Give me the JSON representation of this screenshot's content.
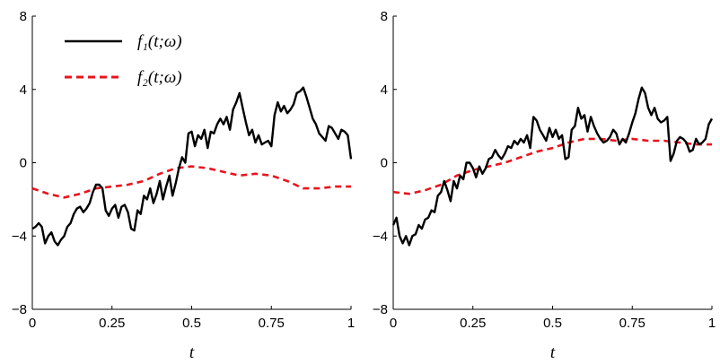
{
  "chart_data": [
    {
      "type": "line",
      "xlabel": "t",
      "xlim": [
        0,
        1
      ],
      "ylim": [
        -8,
        8
      ],
      "xticks": [
        {
          "v": 0,
          "label": "0"
        },
        {
          "v": 0.25,
          "label": "0.25"
        },
        {
          "v": 0.5,
          "label": "0.5"
        },
        {
          "v": 0.75,
          "label": "0.75"
        },
        {
          "v": 1,
          "label": "1"
        }
      ],
      "yticks": [
        {
          "v": -8,
          "label": "−8"
        },
        {
          "v": -4,
          "label": "−4"
        },
        {
          "v": 0,
          "label": "0"
        },
        {
          "v": 4,
          "label": "4"
        },
        {
          "v": 8,
          "label": "8"
        }
      ],
      "legend": {
        "placement": "top-left"
      },
      "series": [
        {
          "name": "f₁(t;ω)",
          "color": "#000000",
          "style": "solid",
          "x": [
            0,
            0.01,
            0.02,
            0.03,
            0.04,
            0.05,
            0.06,
            0.07,
            0.08,
            0.09,
            0.1,
            0.11,
            0.12,
            0.13,
            0.14,
            0.15,
            0.16,
            0.17,
            0.18,
            0.19,
            0.2,
            0.21,
            0.22,
            0.23,
            0.24,
            0.25,
            0.26,
            0.27,
            0.28,
            0.29,
            0.3,
            0.31,
            0.32,
            0.33,
            0.34,
            0.35,
            0.36,
            0.37,
            0.38,
            0.39,
            0.4,
            0.41,
            0.42,
            0.43,
            0.44,
            0.45,
            0.46,
            0.47,
            0.48,
            0.49,
            0.5,
            0.51,
            0.52,
            0.53,
            0.54,
            0.55,
            0.56,
            0.57,
            0.58,
            0.59,
            0.6,
            0.61,
            0.62,
            0.63,
            0.64,
            0.65,
            0.66,
            0.67,
            0.68,
            0.69,
            0.7,
            0.71,
            0.72,
            0.73,
            0.74,
            0.75,
            0.76,
            0.77,
            0.78,
            0.79,
            0.8,
            0.81,
            0.82,
            0.83,
            0.84,
            0.85,
            0.86,
            0.87,
            0.88,
            0.89,
            0.9,
            0.91,
            0.92,
            0.93,
            0.94,
            0.95,
            0.96,
            0.97,
            0.98,
            0.99,
            1.0
          ],
          "y": [
            -3.6,
            -3.5,
            -3.3,
            -3.5,
            -4.4,
            -4.0,
            -3.8,
            -4.3,
            -4.5,
            -4.2,
            -4.0,
            -3.5,
            -3.3,
            -2.8,
            -2.5,
            -2.4,
            -2.7,
            -2.5,
            -2.2,
            -1.6,
            -1.2,
            -1.2,
            -1.4,
            -2.6,
            -2.9,
            -2.5,
            -2.3,
            -3.0,
            -2.4,
            -2.3,
            -2.7,
            -3.6,
            -3.7,
            -2.6,
            -2.8,
            -1.8,
            -2.0,
            -1.4,
            -2.2,
            -1.7,
            -1.0,
            -2.0,
            -1.3,
            -0.7,
            -1.8,
            -1.1,
            -0.3,
            0.3,
            0.0,
            1.6,
            1.7,
            0.9,
            1.5,
            1.3,
            1.8,
            0.8,
            1.7,
            1.6,
            2.1,
            2.4,
            2.1,
            2.5,
            1.8,
            2.9,
            3.3,
            3.8,
            3.0,
            2.2,
            1.5,
            1.8,
            1.1,
            1.5,
            1.0,
            1.1,
            1.2,
            0.9,
            2.6,
            3.3,
            2.8,
            3.1,
            2.7,
            2.9,
            3.2,
            3.8,
            3.9,
            4.1,
            3.6,
            3.0,
            2.4,
            2.1,
            1.6,
            1.4,
            1.2,
            2.0,
            1.9,
            1.6,
            1.3,
            1.8,
            1.7,
            1.5,
            0.2
          ]
        },
        {
          "name": "f₂(t;ω)",
          "color": "#e8141e",
          "style": "dashed",
          "x": [
            0,
            0.05,
            0.1,
            0.15,
            0.2,
            0.25,
            0.3,
            0.35,
            0.4,
            0.45,
            0.5,
            0.55,
            0.6,
            0.65,
            0.7,
            0.75,
            0.8,
            0.85,
            0.9,
            0.95,
            1.0
          ],
          "y": [
            -1.4,
            -1.7,
            -1.9,
            -1.7,
            -1.4,
            -1.3,
            -1.2,
            -1.0,
            -0.6,
            -0.3,
            -0.2,
            -0.3,
            -0.5,
            -0.7,
            -0.6,
            -0.7,
            -1.0,
            -1.4,
            -1.4,
            -1.3,
            -1.3
          ]
        }
      ]
    },
    {
      "type": "line",
      "xlabel": "t",
      "xlim": [
        0,
        1
      ],
      "ylim": [
        -8,
        8
      ],
      "xticks": [
        {
          "v": 0,
          "label": "0"
        },
        {
          "v": 0.25,
          "label": "0.25"
        },
        {
          "v": 0.5,
          "label": "0.5"
        },
        {
          "v": 0.75,
          "label": "0.75"
        },
        {
          "v": 1,
          "label": "1"
        }
      ],
      "yticks": [
        {
          "v": -8,
          "label": "−8"
        },
        {
          "v": -4,
          "label": "−4"
        },
        {
          "v": 0,
          "label": "0"
        },
        {
          "v": 4,
          "label": "4"
        },
        {
          "v": 8,
          "label": "8"
        }
      ],
      "series": [
        {
          "color": "#000000",
          "style": "solid",
          "x": [
            0,
            0.01,
            0.02,
            0.03,
            0.04,
            0.05,
            0.06,
            0.07,
            0.08,
            0.09,
            0.1,
            0.11,
            0.12,
            0.13,
            0.14,
            0.15,
            0.16,
            0.17,
            0.18,
            0.19,
            0.2,
            0.21,
            0.22,
            0.23,
            0.24,
            0.25,
            0.26,
            0.27,
            0.28,
            0.29,
            0.3,
            0.31,
            0.32,
            0.33,
            0.34,
            0.35,
            0.36,
            0.37,
            0.38,
            0.39,
            0.4,
            0.41,
            0.42,
            0.43,
            0.44,
            0.45,
            0.46,
            0.47,
            0.48,
            0.49,
            0.5,
            0.51,
            0.52,
            0.53,
            0.54,
            0.55,
            0.56,
            0.57,
            0.58,
            0.59,
            0.6,
            0.61,
            0.62,
            0.63,
            0.64,
            0.65,
            0.66,
            0.67,
            0.68,
            0.69,
            0.7,
            0.71,
            0.72,
            0.73,
            0.74,
            0.75,
            0.76,
            0.77,
            0.78,
            0.79,
            0.8,
            0.81,
            0.82,
            0.83,
            0.84,
            0.85,
            0.86,
            0.87,
            0.88,
            0.89,
            0.9,
            0.91,
            0.92,
            0.93,
            0.94,
            0.95,
            0.96,
            0.97,
            0.98,
            0.99,
            1.0
          ],
          "y": [
            -3.4,
            -3.0,
            -4.0,
            -4.4,
            -4.0,
            -4.5,
            -4.0,
            -3.9,
            -3.4,
            -3.6,
            -3.1,
            -3.0,
            -2.6,
            -2.7,
            -1.8,
            -1.6,
            -1.0,
            -1.5,
            -2.1,
            -1.0,
            -1.4,
            -0.7,
            -0.9,
            0.0,
            0.0,
            -0.3,
            -0.8,
            -0.2,
            -0.6,
            -0.3,
            0.2,
            0.3,
            0.7,
            0.4,
            0.2,
            0.5,
            0.9,
            0.8,
            1.2,
            1.0,
            1.3,
            1.1,
            1.5,
            0.8,
            2.5,
            2.3,
            1.8,
            1.5,
            1.2,
            1.9,
            1.4,
            1.8,
            1.3,
            1.5,
            0.2,
            0.3,
            1.8,
            2.0,
            3.0,
            2.4,
            2.6,
            1.7,
            2.5,
            2.0,
            1.6,
            1.3,
            1.1,
            1.2,
            1.4,
            1.8,
            1.6,
            1.0,
            1.3,
            1.1,
            1.6,
            2.2,
            2.7,
            3.5,
            4.1,
            3.8,
            3.0,
            2.6,
            3.0,
            2.4,
            2.2,
            2.3,
            2.5,
            0.1,
            0.5,
            1.2,
            1.4,
            1.3,
            1.1,
            0.6,
            0.7,
            1.3,
            1.0,
            1.1,
            1.3,
            2.1,
            2.4
          ]
        },
        {
          "color": "#e8141e",
          "style": "dashed",
          "x": [
            0,
            0.05,
            0.1,
            0.15,
            0.2,
            0.25,
            0.3,
            0.35,
            0.4,
            0.45,
            0.5,
            0.55,
            0.6,
            0.65,
            0.7,
            0.75,
            0.8,
            0.85,
            0.9,
            0.95,
            1.0
          ],
          "y": [
            -1.6,
            -1.7,
            -1.5,
            -1.2,
            -0.7,
            -0.4,
            -0.2,
            0.0,
            0.3,
            0.6,
            0.8,
            1.1,
            1.3,
            1.3,
            1.2,
            1.3,
            1.2,
            1.2,
            1.1,
            1.0,
            1.0
          ]
        }
      ]
    }
  ]
}
